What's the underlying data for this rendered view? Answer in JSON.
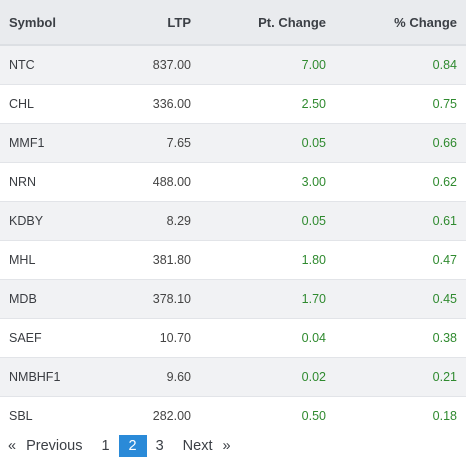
{
  "table": {
    "headers": {
      "symbol": "Symbol",
      "ltp": "LTP",
      "pt_change": "Pt. Change",
      "pct_change": "% Change"
    },
    "rows": [
      {
        "symbol": "NTC",
        "ltp": "837.00",
        "pt": "7.00",
        "pct": "0.84"
      },
      {
        "symbol": "CHL",
        "ltp": "336.00",
        "pt": "2.50",
        "pct": "0.75"
      },
      {
        "symbol": "MMF1",
        "ltp": "7.65",
        "pt": "0.05",
        "pct": "0.66"
      },
      {
        "symbol": "NRN",
        "ltp": "488.00",
        "pt": "3.00",
        "pct": "0.62"
      },
      {
        "symbol": "KDBY",
        "ltp": "8.29",
        "pt": "0.05",
        "pct": "0.61"
      },
      {
        "symbol": "MHL",
        "ltp": "381.80",
        "pt": "1.80",
        "pct": "0.47"
      },
      {
        "symbol": "MDB",
        "ltp": "378.10",
        "pt": "1.70",
        "pct": "0.45"
      },
      {
        "symbol": "SAEF",
        "ltp": "10.70",
        "pt": "0.04",
        "pct": "0.38"
      },
      {
        "symbol": "NMBHF1",
        "ltp": "9.60",
        "pt": "0.02",
        "pct": "0.21"
      },
      {
        "symbol": "SBL",
        "ltp": "282.00",
        "pt": "0.50",
        "pct": "0.18"
      }
    ]
  },
  "pagination": {
    "prev_arrow": "«",
    "prev_label": "Previous",
    "pages": [
      "1",
      "2",
      "3"
    ],
    "current_page": "2",
    "next_label": "Next",
    "next_arrow": "»"
  },
  "colors": {
    "header_bg": "#e9ebee",
    "striped_row_bg": "#f1f2f4",
    "positive_change": "#2f8a2f",
    "active_page_bg": "#2a8ad8"
  }
}
